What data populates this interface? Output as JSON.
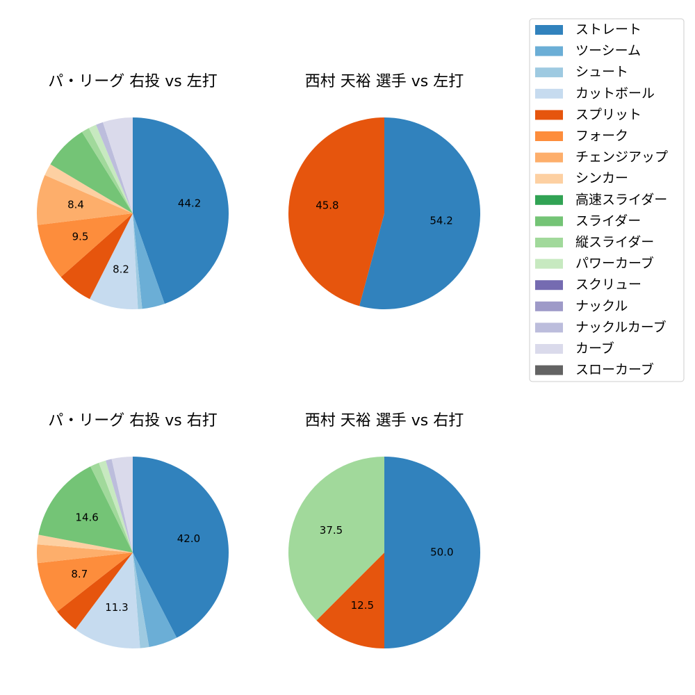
{
  "legend": {
    "items": [
      {
        "label": "ストレート",
        "color": "#3182bd"
      },
      {
        "label": "ツーシーム",
        "color": "#6baed6"
      },
      {
        "label": "シュート",
        "color": "#9ecae1"
      },
      {
        "label": "カットボール",
        "color": "#c6dbef"
      },
      {
        "label": "スプリット",
        "color": "#e6550d"
      },
      {
        "label": "フォーク",
        "color": "#fd8d3c"
      },
      {
        "label": "チェンジアップ",
        "color": "#fdae6b"
      },
      {
        "label": "シンカー",
        "color": "#fdd0a2"
      },
      {
        "label": "高速スライダー",
        "color": "#31a354"
      },
      {
        "label": "スライダー",
        "color": "#74c476"
      },
      {
        "label": "縦スライダー",
        "color": "#a1d99b"
      },
      {
        "label": "パワーカーブ",
        "color": "#c7e9c0"
      },
      {
        "label": "スクリュー",
        "color": "#756bb1"
      },
      {
        "label": "ナックル",
        "color": "#9e9ac8"
      },
      {
        "label": "ナックルカーブ",
        "color": "#bcbddc"
      },
      {
        "label": "カーブ",
        "color": "#dadaeb"
      },
      {
        "label": "スローカーブ",
        "color": "#636363"
      }
    ]
  },
  "chart_data": [
    {
      "type": "pie",
      "title": "パ・リーグ 右投 vs 左打",
      "start_angle_deg": 90,
      "direction": "clockwise",
      "slices": [
        {
          "label": "ストレート",
          "value": 44.2,
          "show_label": true
        },
        {
          "label": "ツーシーム",
          "value": 3.8,
          "show_label": false
        },
        {
          "label": "シュート",
          "value": 0.7,
          "show_label": false
        },
        {
          "label": "カットボール",
          "value": 8.2,
          "show_label": true
        },
        {
          "label": "スプリット",
          "value": 6.0,
          "show_label": false
        },
        {
          "label": "フォーク",
          "value": 9.5,
          "show_label": true
        },
        {
          "label": "チェンジアップ",
          "value": 8.4,
          "show_label": true
        },
        {
          "label": "シンカー",
          "value": 2.0,
          "show_label": false
        },
        {
          "label": "スライダー",
          "value": 7.5,
          "show_label": false
        },
        {
          "label": "縦スライダー",
          "value": 1.3,
          "show_label": false
        },
        {
          "label": "パワーカーブ",
          "value": 1.3,
          "show_label": false
        },
        {
          "label": "ナックルカーブ",
          "value": 1.2,
          "show_label": false
        },
        {
          "label": "カーブ",
          "value": 5.0,
          "show_label": false
        }
      ]
    },
    {
      "type": "pie",
      "title": "西村 天裕 選手 vs 左打",
      "start_angle_deg": 90,
      "direction": "clockwise",
      "slices": [
        {
          "label": "ストレート",
          "value": 54.2,
          "show_label": true
        },
        {
          "label": "スプリット",
          "value": 45.8,
          "show_label": true
        }
      ]
    },
    {
      "type": "pie",
      "title": "パ・リーグ 右投 vs 右打",
      "start_angle_deg": 90,
      "direction": "clockwise",
      "slices": [
        {
          "label": "ストレート",
          "value": 42.0,
          "show_label": true
        },
        {
          "label": "ツーシーム",
          "value": 4.8,
          "show_label": false
        },
        {
          "label": "シュート",
          "value": 1.5,
          "show_label": false
        },
        {
          "label": "カットボール",
          "value": 11.3,
          "show_label": true
        },
        {
          "label": "スプリット",
          "value": 4.2,
          "show_label": false
        },
        {
          "label": "フォーク",
          "value": 8.7,
          "show_label": true
        },
        {
          "label": "チェンジアップ",
          "value": 3.1,
          "show_label": false
        },
        {
          "label": "シンカー",
          "value": 1.6,
          "show_label": false
        },
        {
          "label": "スライダー",
          "value": 14.6,
          "show_label": true
        },
        {
          "label": "縦スライダー",
          "value": 1.5,
          "show_label": false
        },
        {
          "label": "パワーカーブ",
          "value": 1.2,
          "show_label": false
        },
        {
          "label": "ナックルカーブ",
          "value": 1.0,
          "show_label": false
        },
        {
          "label": "カーブ",
          "value": 3.5,
          "show_label": false
        }
      ]
    },
    {
      "type": "pie",
      "title": "西村 天裕 選手 vs 右打",
      "start_angle_deg": 90,
      "direction": "clockwise",
      "slices": [
        {
          "label": "ストレート",
          "value": 50.0,
          "show_label": true
        },
        {
          "label": "スプリット",
          "value": 12.5,
          "show_label": true
        },
        {
          "label": "縦スライダー",
          "value": 37.5,
          "show_label": true
        }
      ]
    }
  ]
}
